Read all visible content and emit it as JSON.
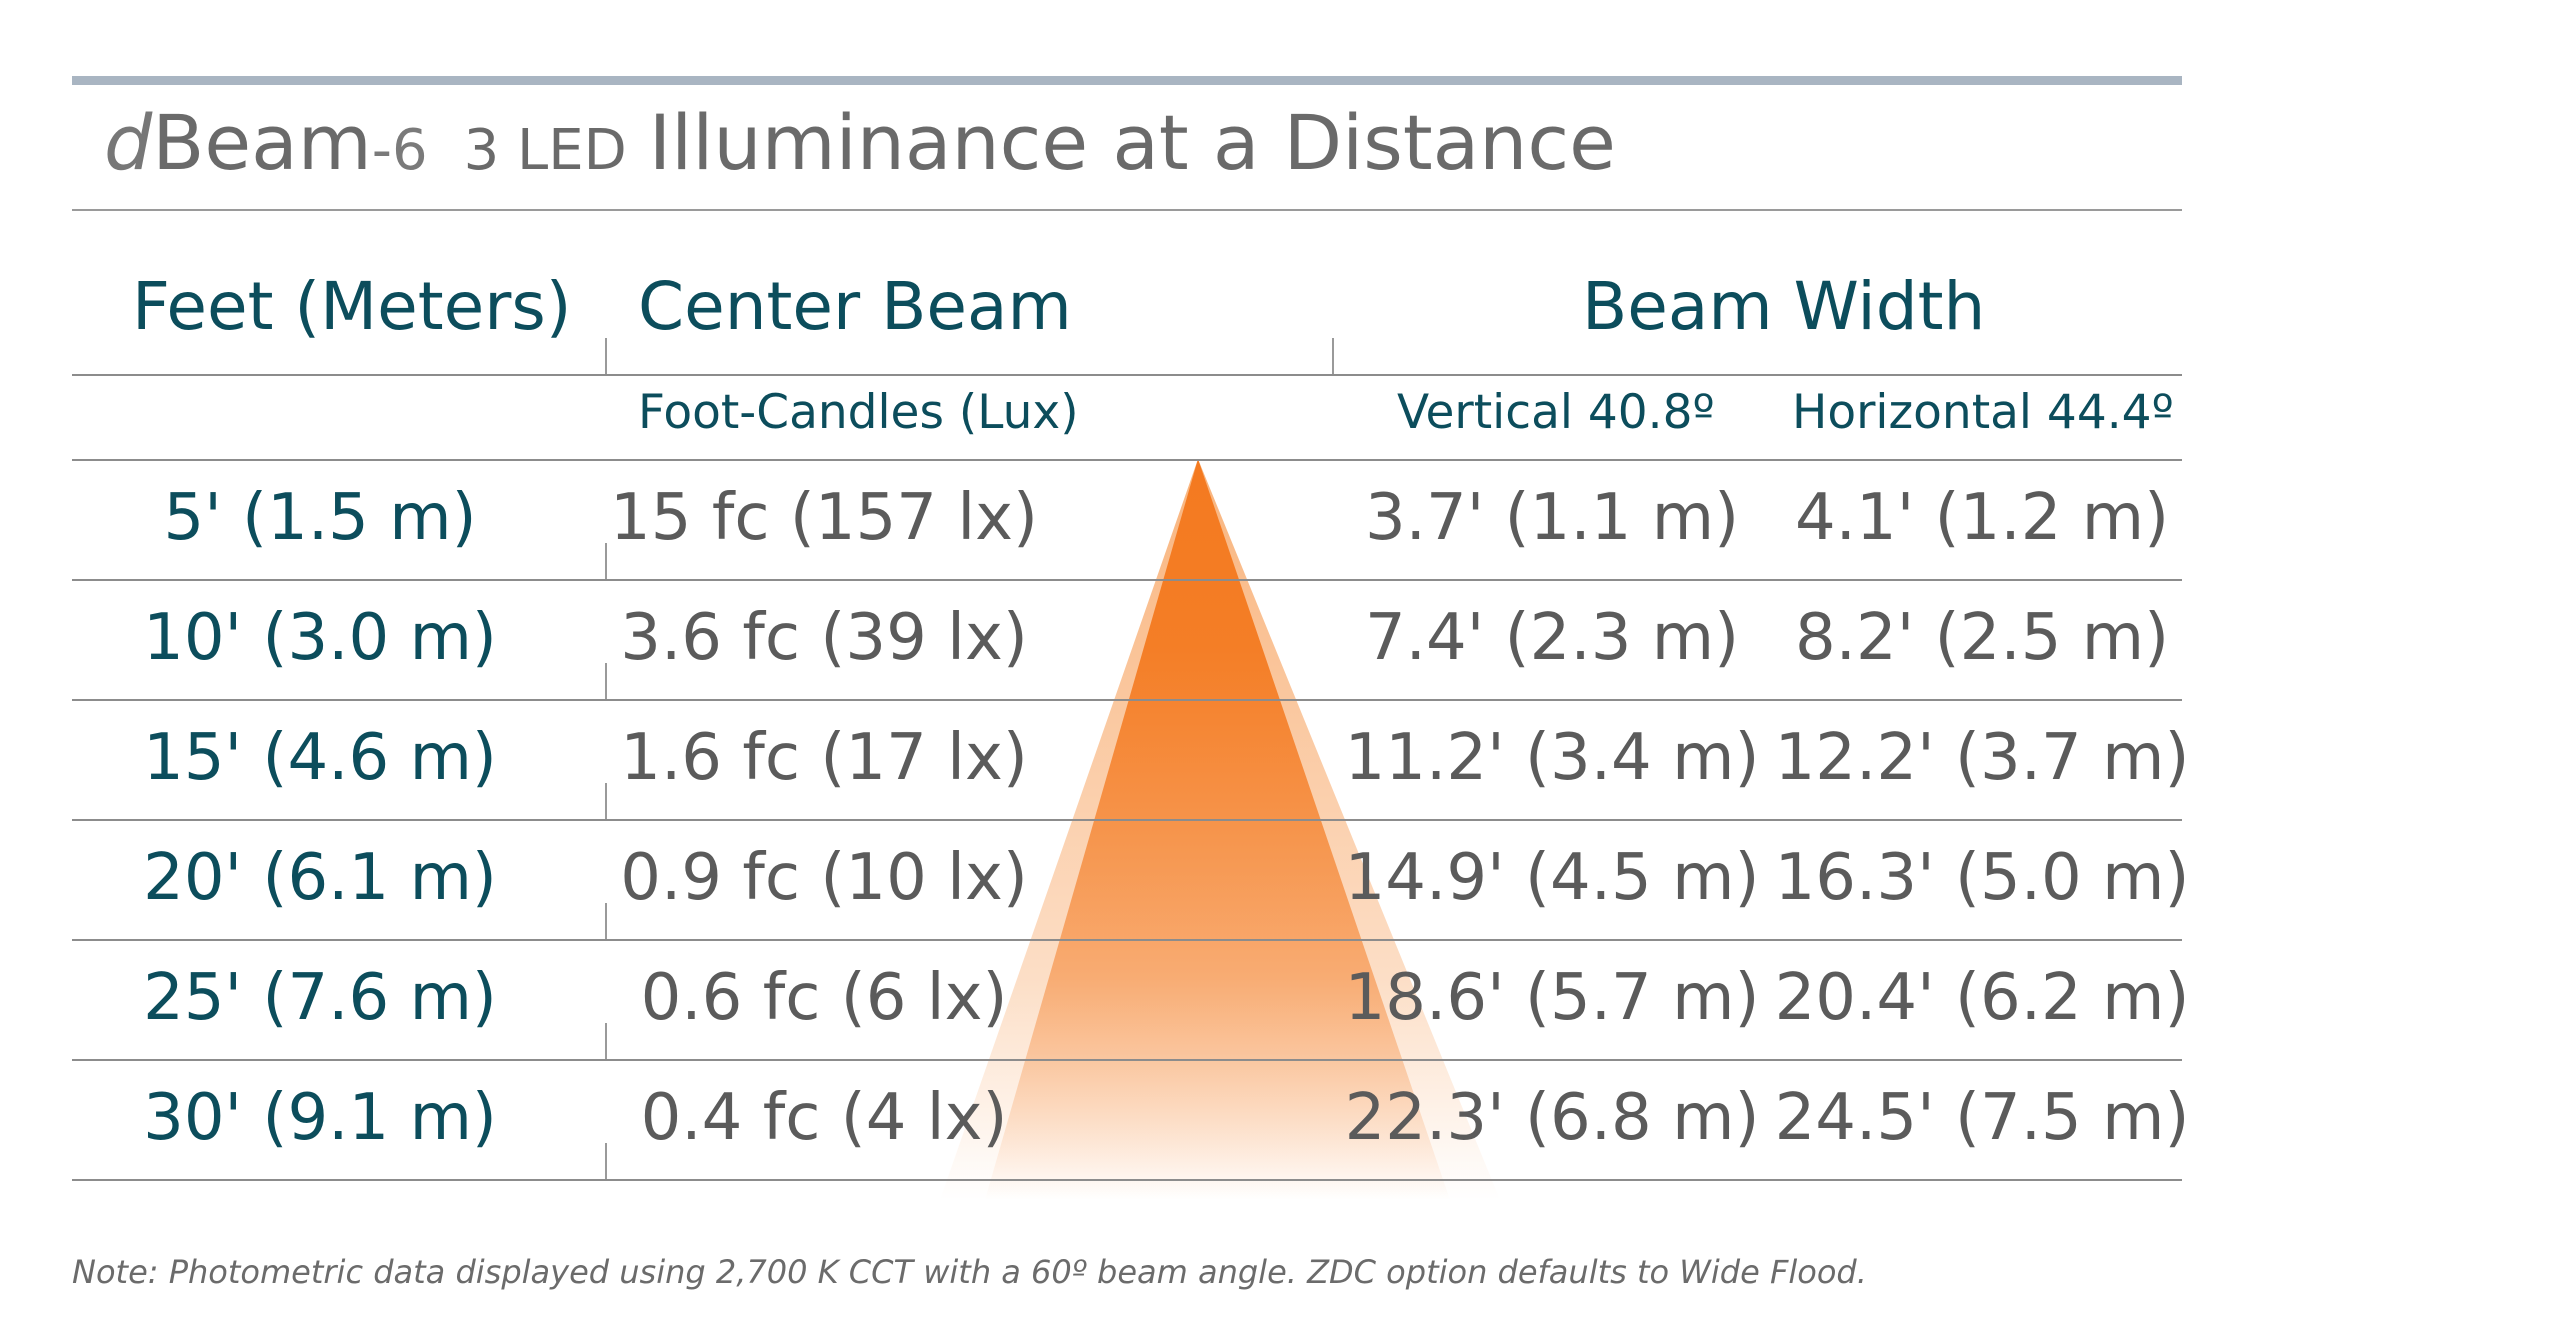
{
  "title": {
    "prefix": "d",
    "product": "Beam",
    "model": "-6",
    "led": "3 LED",
    "rest": "Illuminance at a Distance"
  },
  "headers": {
    "distance": "Feet (Meters)",
    "center_beam": "Center Beam",
    "beam_width": "Beam Width",
    "foot_candles": "Foot-Candles (Lux)",
    "vertical": "Vertical 40.8º",
    "horizontal": "Horizontal 44.4º"
  },
  "rows": [
    {
      "distance": "5' (1.5 m)",
      "center": "15 fc (157 lx)",
      "vertical": "3.7' (1.1 m)",
      "horizontal": "4.1' (1.2 m)"
    },
    {
      "distance": "10' (3.0 m)",
      "center": "3.6 fc (39 lx)",
      "vertical": "7.4' (2.3 m)",
      "horizontal": "8.2' (2.5 m)"
    },
    {
      "distance": "15' (4.6 m)",
      "center": "1.6 fc (17 lx)",
      "vertical": "11.2' (3.4 m)",
      "horizontal": "12.2' (3.7 m)"
    },
    {
      "distance": "20' (6.1 m)",
      "center": "0.9 fc (10 lx)",
      "vertical": "14.9' (4.5 m)",
      "horizontal": "16.3' (5.0 m)"
    },
    {
      "distance": "25' (7.6 m)",
      "center": "0.6 fc (6 lx)",
      "vertical": "18.6' (5.7 m)",
      "horizontal": "20.4' (6.2 m)"
    },
    {
      "distance": "30' (9.1 m)",
      "center": "0.4 fc (4 lx)",
      "vertical": "22.3' (6.8 m)",
      "horizontal": "24.5' (7.5 m)"
    }
  ],
  "note": "Note: Photometric data displayed using 2,700 K CCT with a 60º beam angle. ZDC option defaults to Wide Flood.",
  "colors": {
    "beam": "#f47a20",
    "header_text": "#0c4d5c",
    "value_text": "#5b5b5b",
    "top_rule": "#a9b5c2"
  },
  "chart_data": {
    "type": "table",
    "title": "dBeam-6 3 LED Illuminance at a Distance",
    "columns": [
      "Feet (Meters)",
      "Center Beam Foot-Candles (Lux)",
      "Beam Width Vertical 40.8º",
      "Beam Width Horizontal 44.4º"
    ],
    "distance_ft": [
      5,
      10,
      15,
      20,
      25,
      30
    ],
    "distance_m": [
      1.5,
      3.0,
      4.6,
      6.1,
      7.6,
      9.1
    ],
    "center_beam_fc": [
      15,
      3.6,
      1.6,
      0.9,
      0.6,
      0.4
    ],
    "center_beam_lx": [
      157,
      39,
      17,
      10,
      6,
      4
    ],
    "vertical_width_ft": [
      3.7,
      7.4,
      11.2,
      14.9,
      18.6,
      22.3
    ],
    "vertical_width_m": [
      1.1,
      2.3,
      3.4,
      4.5,
      5.7,
      6.8
    ],
    "horizontal_width_ft": [
      4.1,
      8.2,
      12.2,
      16.3,
      20.4,
      24.5
    ],
    "horizontal_width_m": [
      1.2,
      2.5,
      3.7,
      5.0,
      6.2,
      7.5
    ]
  }
}
